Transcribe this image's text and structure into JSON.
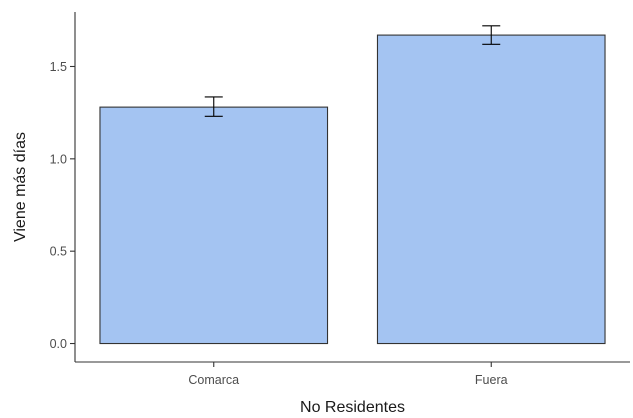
{
  "chart_data": {
    "type": "bar",
    "xlabel": "No Residentes",
    "ylabel": "Viene más días",
    "categories": [
      "Comarca",
      "Fuera"
    ],
    "values": [
      1.28,
      1.67
    ],
    "error_low": [
      1.23,
      1.62
    ],
    "error_high": [
      1.335,
      1.72
    ],
    "ylim": [
      -0.1,
      1.795
    ],
    "yticks": [
      0.0,
      0.5,
      1.0,
      1.5
    ],
    "ytick_labels": [
      "0.0",
      "0.5",
      "1.0",
      "1.5"
    ],
    "grid": false,
    "legend": "none",
    "colors": {
      "bar_fill": "#a4c4f2",
      "bar_stroke": "#333333",
      "axis": "#333333",
      "error_bar": "#000000"
    }
  }
}
